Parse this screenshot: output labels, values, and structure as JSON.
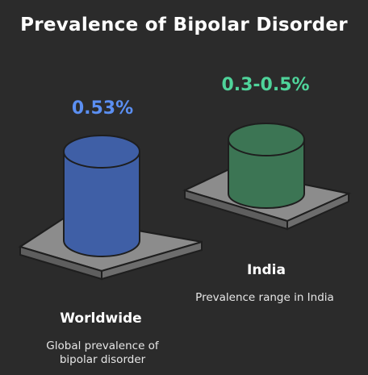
{
  "title": "Prevalence of Bipolar Disorder",
  "items": [
    {
      "value": "0.53%",
      "label": "Worldwide",
      "description": "Global prevalence of bipolar disorder",
      "value_color": "#5b8ff2",
      "cylinder_color": "#3f5fa6"
    },
    {
      "value": "0.3-0.5%",
      "label": "India",
      "description": "Prevalence range in India",
      "value_color": "#4fd39a",
      "cylinder_color": "#3c7554"
    }
  ]
}
